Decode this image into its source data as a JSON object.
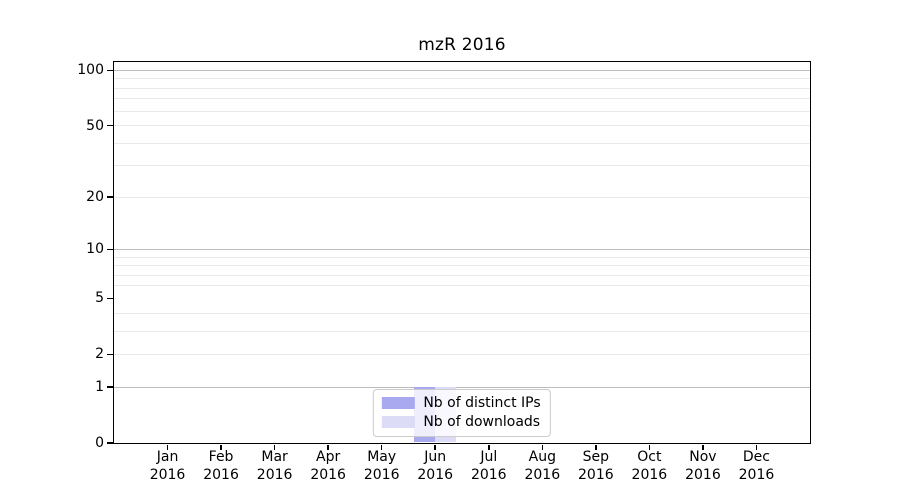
{
  "chart_data": {
    "type": "bar",
    "title": "mzR 2016",
    "x_ticks": [
      {
        "month": "Jan",
        "year": "2016"
      },
      {
        "month": "Feb",
        "year": "2016"
      },
      {
        "month": "Mar",
        "year": "2016"
      },
      {
        "month": "Apr",
        "year": "2016"
      },
      {
        "month": "May",
        "year": "2016"
      },
      {
        "month": "Jun",
        "year": "2016"
      },
      {
        "month": "Jul",
        "year": "2016"
      },
      {
        "month": "Aug",
        "year": "2016"
      },
      {
        "month": "Sep",
        "year": "2016"
      },
      {
        "month": "Oct",
        "year": "2016"
      },
      {
        "month": "Nov",
        "year": "2016"
      },
      {
        "month": "Dec",
        "year": "2016"
      }
    ],
    "series": [
      {
        "name": "Nb of distinct IPs",
        "color": "#a9a9f0",
        "values": [
          0,
          0,
          0,
          0,
          0,
          1,
          0,
          0,
          0,
          0,
          0,
          0
        ]
      },
      {
        "name": "Nb of downloads",
        "color": "#dcdcf7",
        "values": [
          0,
          0,
          0,
          0,
          0,
          1,
          0,
          0,
          0,
          0,
          0,
          0
        ]
      }
    ],
    "y_axis": {
      "scale": "log1p",
      "ticks": [
        0,
        1,
        2,
        5,
        10,
        20,
        50,
        100
      ],
      "major_gridlines": [
        1,
        10,
        100
      ],
      "minor_gridlines": [
        2,
        3,
        4,
        6,
        7,
        8,
        9,
        20,
        30,
        40,
        50,
        60,
        70,
        80,
        90
      ],
      "range": [
        0,
        111
      ]
    },
    "grid": true,
    "grid_colors": {
      "major": "#bdbdbd",
      "minor": "#eaeaea"
    },
    "legend_position": "lower center"
  }
}
